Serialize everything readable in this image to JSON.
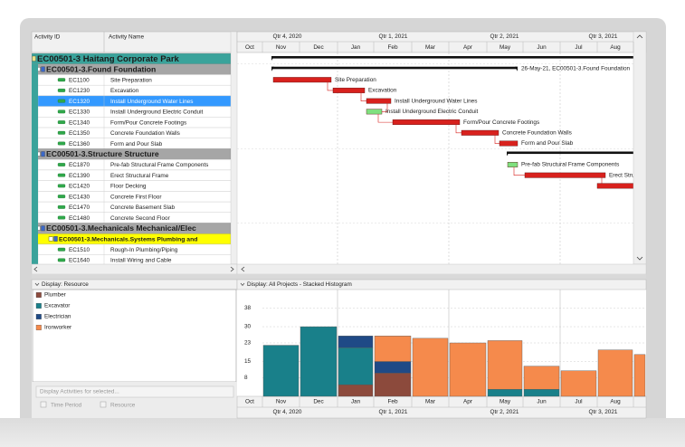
{
  "table": {
    "headers": [
      "Activity ID",
      "Activity Name"
    ],
    "rows": [
      {
        "label": "EC00501-3  Haitang Corporate Park"
      },
      {
        "label": "EC00501-3.Found  Foundation"
      },
      {
        "id": "EC1100",
        "name": "Site Preparation"
      },
      {
        "id": "EC1230",
        "name": "Excavation"
      },
      {
        "id": "EC1320",
        "name": "Install Underground Water Lines"
      },
      {
        "id": "EC1330",
        "name": "Install Underground Electric Conduit"
      },
      {
        "id": "EC1340",
        "name": "Form/Pour Concrete Footings"
      },
      {
        "id": "EC1350",
        "name": "Concrete Foundation Walls"
      },
      {
        "id": "EC1360",
        "name": "Form and Pour Slab"
      },
      {
        "label": "EC00501-3.Structure  Structure"
      },
      {
        "id": "EC1870",
        "name": "Pre-fab Structural Frame Components"
      },
      {
        "id": "EC1390",
        "name": "Erect Structural Frame"
      },
      {
        "id": "EC1420",
        "name": "Floor Decking"
      },
      {
        "id": "EC1430",
        "name": "Concrete First Floor"
      },
      {
        "id": "EC1470",
        "name": "Concrete Basement Slab"
      },
      {
        "id": "EC1480",
        "name": "Concrete Second Floor"
      },
      {
        "label": "EC00501-3.Mechanicals  Mechanical/Elec"
      },
      {
        "label": "EC00501-3.Mechanicals.Systems  Plumbing and"
      },
      {
        "id": "EC1510",
        "name": "Rough-In Plumbing/Piping"
      },
      {
        "id": "EC1640",
        "name": "Install Wiring and Cable"
      }
    ]
  },
  "timescale": {
    "quarters": [
      "Qtr 4, 2020",
      "Qtr 1, 2021",
      "Qtr 2, 2021",
      "Qtr 3, 2021"
    ]
  },
  "gantt": {
    "bar_labels": [
      "26-May-21, EC00501-3.Found  Foundation",
      "Site Preparation",
      "Excavation",
      "Install Underground Water Lines",
      "Install Underground Electric Conduit",
      "Form/Pour Concrete Footings",
      "Concrete Foundation Walls",
      "Form and Pour Slab",
      "Pre-fab Structural Frame Components",
      "Erect Stru"
    ]
  },
  "resource_panel": {
    "title": "Display: Resource",
    "button": "Display Activities for selected...",
    "checkboxes": [
      "Time Period",
      "Resource"
    ]
  },
  "chart_data": {
    "type": "stacked-bar",
    "title": "Display: All Projects - Stacked Histogram",
    "categories": [
      "Oct",
      "Nov",
      "Dec",
      "Jan",
      "Feb",
      "Mar",
      "Apr",
      "May",
      "Jun",
      "Jul",
      "Aug",
      null
    ],
    "series": [
      {
        "name": "Plumber",
        "color": "#8c4a3c",
        "values": [
          0,
          0,
          0,
          5,
          10,
          0,
          0,
          0,
          0,
          0,
          0,
          0
        ]
      },
      {
        "name": "Excavator",
        "color": "#19808a",
        "values": [
          0,
          22,
          30,
          16,
          0,
          0,
          0,
          3,
          3,
          0,
          0,
          0
        ]
      },
      {
        "name": "Electrician",
        "color": "#1f4a86",
        "values": [
          0,
          0,
          0,
          5,
          5,
          0,
          0,
          0,
          0,
          0,
          0,
          0
        ]
      },
      {
        "name": "Ironworker",
        "color": "#f58a4c",
        "values": [
          0,
          0,
          0,
          0,
          11,
          25,
          23,
          21,
          10,
          11,
          20,
          18
        ]
      }
    ],
    "ylim": [
      0,
      46
    ],
    "yticks": [
      8,
      15,
      23,
      30,
      38
    ],
    "grid": true
  }
}
